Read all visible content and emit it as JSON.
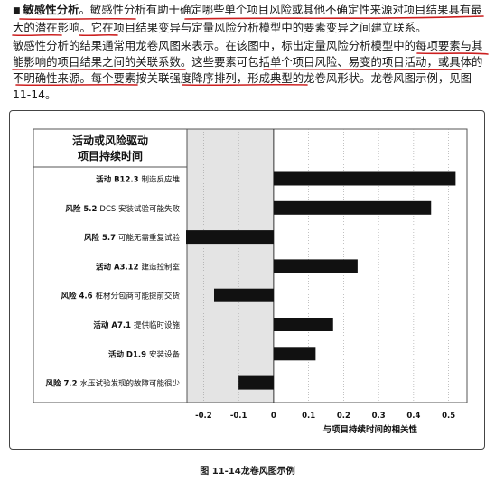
{
  "paragraph1": {
    "bullet": "■",
    "term": "敏感性分析",
    "text": "。敏感性分析有助于确定哪些单个项目风险或其他不确定性来源对项目结果具有最大的潜在影响。它在项目结果变异与定量风险分析模型中的要素变异之间建立联系。"
  },
  "paragraph2": {
    "text": "敏感性分析的结果通常用龙卷风图来表示。在该图中，标出定量风险分析模型中的每项要素与其能影响的项目结果之间的关联系数。这些要素可包括单个项目风险、易变的项目活动，或具体的不明确性来源。每个要素按关联强度降序排列，形成典型的龙卷风形状。龙卷风图示例，见图11-14。"
  },
  "chart_data": {
    "type": "bar",
    "orientation": "horizontal",
    "header": [
      "活动或风险驱动",
      "项目持续时间"
    ],
    "categories": [
      {
        "tag": "活动 B12.3",
        "desc": "制造反应堆"
      },
      {
        "tag": "风险 5.2",
        "desc": "DCS 安装试验可能失败"
      },
      {
        "tag": "风险 5.7",
        "desc": "可能无需重复试验"
      },
      {
        "tag": "活动 A3.12",
        "desc": "建造控制室"
      },
      {
        "tag": "风险 4.6",
        "desc": "桩材分包商可能提前交货"
      },
      {
        "tag": "活动 A7.1",
        "desc": "提供临时设施"
      },
      {
        "tag": "活动 D1.9",
        "desc": "安装设备"
      },
      {
        "tag": "风险 7.2",
        "desc": "水压试验发现的故障可能很少"
      }
    ],
    "values": [
      0.52,
      0.45,
      -0.25,
      0.24,
      -0.17,
      0.17,
      0.12,
      -0.1
    ],
    "xticks": [
      "-0.2",
      "-0.1",
      "0",
      "0.1",
      "0.2",
      "0.3",
      "0.4",
      "0.5"
    ],
    "xlim": [
      -0.25,
      0.55
    ],
    "xlabel": "与项目持续时间的相关性",
    "bar_color": "#111111",
    "shade_color": "#e4e4e4"
  },
  "caption": "图 11-14龙卷风图示例"
}
